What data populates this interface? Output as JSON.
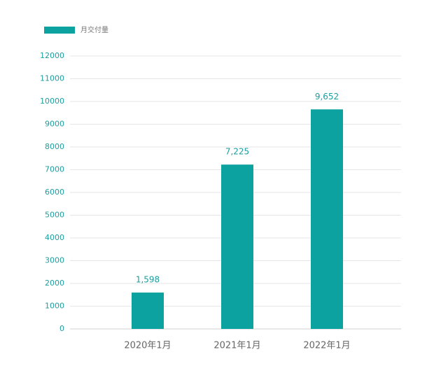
{
  "chart_data": {
    "type": "bar",
    "categories": [
      "2020年1月",
      "2021年1月",
      "2022年1月"
    ],
    "series": [
      {
        "name": "月交付量",
        "color": "#0ba29f",
        "values": [
          1598,
          7225,
          9652
        ],
        "value_labels": [
          "1,598",
          "7,225",
          "9,652"
        ]
      }
    ],
    "ylim": [
      0,
      12000
    ],
    "yticks": [
      0,
      1000,
      2000,
      3000,
      4000,
      5000,
      6000,
      7000,
      8000,
      9000,
      10000,
      11000,
      12000
    ],
    "grid": true,
    "legend": "top-left"
  }
}
